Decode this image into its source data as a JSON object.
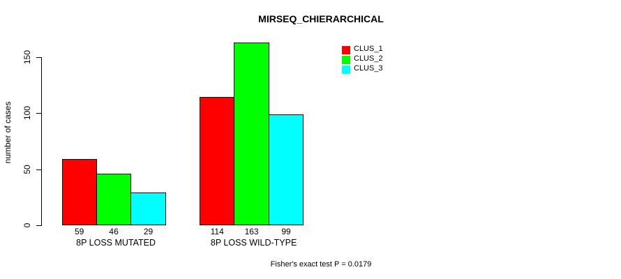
{
  "chart_data": {
    "type": "bar",
    "title": "MIRSEQ_CHIERARCHICAL",
    "ylabel": "number of cases",
    "xlabel": "",
    "categories": [
      "8P LOSS MUTATED",
      "8P LOSS WILD-TYPE"
    ],
    "series": [
      {
        "name": "CLUS_1",
        "color": "#FF0000",
        "values": [
          59,
          114
        ]
      },
      {
        "name": "CLUS_2",
        "color": "#00FF00",
        "values": [
          46,
          163
        ]
      },
      {
        "name": "CLUS_3",
        "color": "#00FFFF",
        "values": [
          29,
          99
        ]
      }
    ],
    "yticks": [
      0,
      50,
      100,
      150
    ],
    "ylim": [
      0,
      165
    ],
    "grid": false,
    "legend_position": "right-of-plot-top",
    "bar_value_labels": true,
    "bar_border_color": "#000000",
    "background": "#FFFFFF",
    "annotation": "Fisher's exact test P = 0.0179"
  }
}
